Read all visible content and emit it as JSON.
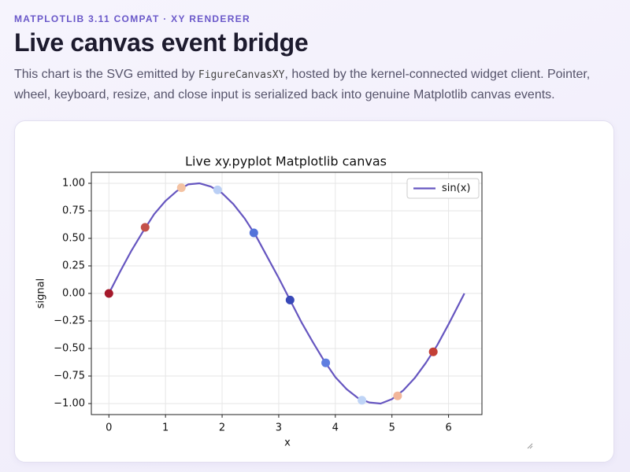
{
  "header": {
    "eyebrow": "MATPLOTLIB 3.11 COMPAT · XY RENDERER",
    "title": "Live canvas event bridge",
    "description": {
      "before": "This chart is the SVG emitted by ",
      "code": "FigureCanvasXY",
      "after": ", hosted by the kernel-connected widget client. Pointer, wheel, keyboard, resize, and close input is serialized back into genuine Matplotlib canvas events."
    }
  },
  "chart_data": {
    "type": "line",
    "title": "Live xy.pyplot Matplotlib canvas",
    "xlabel": "x",
    "ylabel": "signal",
    "series": [
      {
        "name": "sin(x)",
        "color": "#6656c0",
        "x": [
          0,
          0.2,
          0.4,
          0.6,
          0.8,
          1.0,
          1.2,
          1.4,
          1.6,
          1.8,
          2.0,
          2.2,
          2.4,
          2.6,
          2.8,
          3.0,
          3.2,
          3.4,
          3.6,
          3.8,
          4.0,
          4.2,
          4.4,
          4.6,
          4.8,
          5.0,
          5.2,
          5.4,
          5.6,
          5.8,
          6.0,
          6.2,
          6.28
        ],
        "values": [
          0,
          0.2,
          0.39,
          0.56,
          0.72,
          0.84,
          0.93,
          0.99,
          1.0,
          0.97,
          0.91,
          0.81,
          0.68,
          0.52,
          0.33,
          0.14,
          -0.06,
          -0.26,
          -0.44,
          -0.61,
          -0.76,
          -0.87,
          -0.95,
          -0.99,
          -1.0,
          -0.96,
          -0.88,
          -0.77,
          -0.63,
          -0.47,
          -0.28,
          -0.08,
          0
        ]
      }
    ],
    "points": {
      "x": [
        0,
        0.64,
        1.28,
        1.92,
        2.56,
        3.2,
        3.83,
        4.47,
        5.1,
        5.73
      ],
      "values": [
        0,
        0.6,
        0.96,
        0.94,
        0.55,
        -0.06,
        -0.63,
        -0.97,
        -0.93,
        -0.53
      ],
      "colors": [
        "#a5192b",
        "#c4514a",
        "#f4c2a2",
        "#bacff5",
        "#5373da",
        "#3848b8",
        "#5f7ee0",
        "#bfd4f6",
        "#f2b69a",
        "#c33f36"
      ]
    },
    "xlim": [
      -0.31,
      6.59
    ],
    "ylim": [
      -1.1,
      1.1
    ],
    "xticks": [
      0,
      1,
      2,
      3,
      4,
      5,
      6
    ],
    "yticks": [
      {
        "value": -1,
        "label": "−1.00"
      },
      {
        "value": -0.75,
        "label": "−0.75"
      },
      {
        "value": -0.5,
        "label": "−0.50"
      },
      {
        "value": -0.25,
        "label": "−0.25"
      },
      {
        "value": 0,
        "label": "0.00"
      },
      {
        "value": 0.25,
        "label": "0.25"
      },
      {
        "value": 0.5,
        "label": "0.50"
      },
      {
        "value": 0.75,
        "label": "0.75"
      },
      {
        "value": 1,
        "label": "1.00"
      }
    ],
    "grid": true,
    "legend": "upper right"
  }
}
